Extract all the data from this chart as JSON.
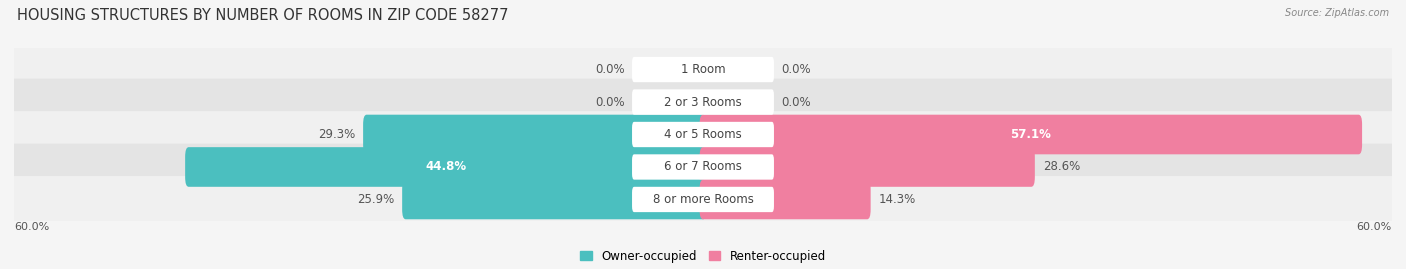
{
  "title": "HOUSING STRUCTURES BY NUMBER OF ROOMS IN ZIP CODE 58277",
  "source": "Source: ZipAtlas.com",
  "categories": [
    "1 Room",
    "2 or 3 Rooms",
    "4 or 5 Rooms",
    "6 or 7 Rooms",
    "8 or more Rooms"
  ],
  "owner_values": [
    0.0,
    0.0,
    29.3,
    44.8,
    25.9
  ],
  "renter_values": [
    0.0,
    0.0,
    57.1,
    28.6,
    14.3
  ],
  "max_val": 60.0,
  "owner_color": "#4BBFBF",
  "renter_color": "#F07FA0",
  "row_bg_light": "#F0F0F0",
  "row_bg_dark": "#E4E4E4",
  "label_fontsize": 8.5,
  "title_fontsize": 10.5,
  "axis_label_fontsize": 8,
  "legend_fontsize": 8.5
}
